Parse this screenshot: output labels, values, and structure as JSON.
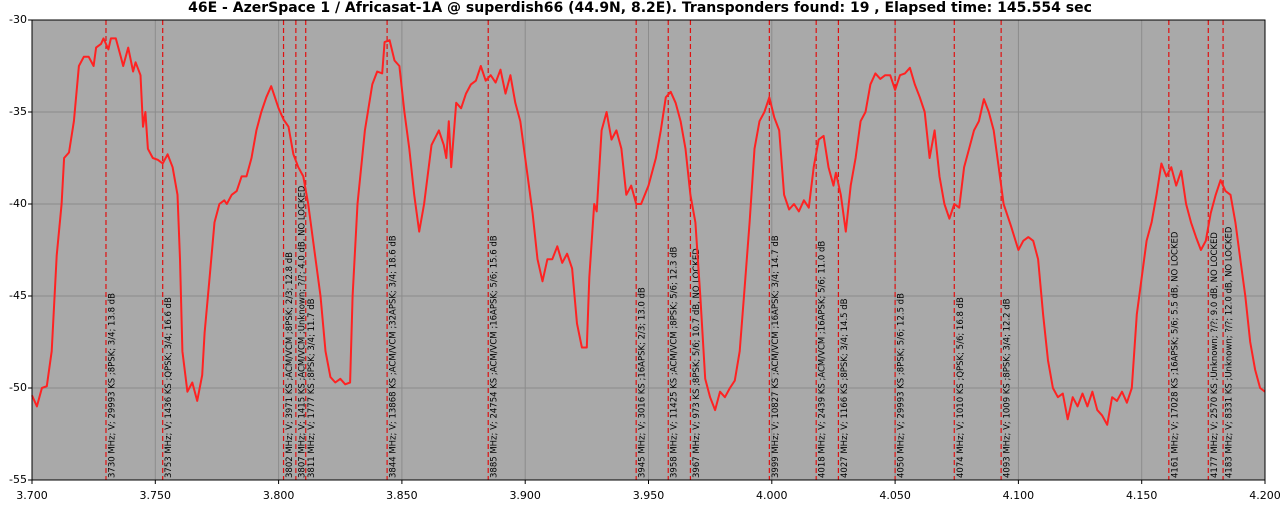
{
  "chart_data": {
    "type": "line",
    "title": "46E - AzerSpace 1 / Africasat-1A @ superdish66 (44.9N, 8.2E). Transponders found: 19 , Elapsed time: 145.554 sec",
    "color": "#ff2222",
    "marker_color": "#e01010",
    "grid": true,
    "xlim": [
      3.7,
      4.2
    ],
    "ylim": [
      -55,
      -30
    ],
    "xticks": [
      {
        "value": 3.7,
        "label": "3.700"
      },
      {
        "value": 3.75,
        "label": "3.750"
      },
      {
        "value": 3.8,
        "label": "3.800"
      },
      {
        "value": 3.85,
        "label": "3.850"
      },
      {
        "value": 3.9,
        "label": "3.900"
      },
      {
        "value": 3.95,
        "label": "3.950"
      },
      {
        "value": 4.0,
        "label": "4.000"
      },
      {
        "value": 4.05,
        "label": "4.050"
      },
      {
        "value": 4.1,
        "label": "4.100"
      },
      {
        "value": 4.15,
        "label": "4.150"
      },
      {
        "value": 4.2,
        "label": "4.200"
      }
    ],
    "yticks": [
      -30,
      -35,
      -40,
      -45,
      -50,
      -55
    ],
    "x": [
      3.7,
      3.702,
      3.704,
      3.706,
      3.708,
      3.71,
      3.712,
      3.713,
      3.715,
      3.717,
      3.719,
      3.721,
      3.723,
      3.725,
      3.726,
      3.728,
      3.729,
      3.731,
      3.732,
      3.734,
      3.736,
      3.737,
      3.739,
      3.741,
      3.742,
      3.744,
      3.745,
      3.746,
      3.747,
      3.749,
      3.751,
      3.753,
      3.755,
      3.757,
      3.759,
      3.76,
      3.761,
      3.763,
      3.765,
      3.767,
      3.769,
      3.77,
      3.772,
      3.774,
      3.776,
      3.778,
      3.779,
      3.781,
      3.783,
      3.785,
      3.787,
      3.789,
      3.791,
      3.793,
      3.795,
      3.797,
      3.8,
      3.802,
      3.804,
      3.806,
      3.808,
      3.81,
      3.812,
      3.814,
      3.817,
      3.819,
      3.821,
      3.823,
      3.825,
      3.827,
      3.829,
      3.83,
      3.832,
      3.835,
      3.838,
      3.84,
      3.842,
      3.843,
      3.845,
      3.847,
      3.849,
      3.851,
      3.853,
      3.855,
      3.857,
      3.859,
      3.862,
      3.865,
      3.867,
      3.868,
      3.869,
      3.87,
      3.872,
      3.874,
      3.876,
      3.878,
      3.88,
      3.882,
      3.884,
      3.886,
      3.888,
      3.89,
      3.892,
      3.894,
      3.896,
      3.898,
      3.9,
      3.903,
      3.905,
      3.907,
      3.909,
      3.911,
      3.913,
      3.915,
      3.917,
      3.919,
      3.921,
      3.923,
      3.925,
      3.926,
      3.928,
      3.929,
      3.931,
      3.933,
      3.935,
      3.937,
      3.939,
      3.941,
      3.943,
      3.945,
      3.947,
      3.95,
      3.953,
      3.955,
      3.957,
      3.959,
      3.961,
      3.963,
      3.965,
      3.967,
      3.969,
      3.971,
      3.973,
      3.975,
      3.977,
      3.979,
      3.981,
      3.983,
      3.985,
      3.987,
      3.989,
      3.991,
      3.993,
      3.995,
      3.997,
      3.999,
      4.001,
      4.003,
      4.005,
      4.007,
      4.009,
      4.011,
      4.013,
      4.015,
      4.017,
      4.019,
      4.021,
      4.023,
      4.025,
      4.026,
      4.028,
      4.03,
      4.032,
      4.034,
      4.036,
      4.038,
      4.04,
      4.042,
      4.044,
      4.046,
      4.048,
      4.05,
      4.052,
      4.054,
      4.056,
      4.058,
      4.06,
      4.062,
      4.064,
      4.066,
      4.068,
      4.07,
      4.072,
      4.074,
      4.076,
      4.078,
      4.08,
      4.082,
      4.084,
      4.086,
      4.088,
      4.09,
      4.092,
      4.094,
      4.097,
      4.1,
      4.102,
      4.104,
      4.106,
      4.108,
      4.11,
      4.112,
      4.114,
      4.116,
      4.118,
      4.12,
      4.122,
      4.124,
      4.126,
      4.128,
      4.13,
      4.132,
      4.134,
      4.136,
      4.138,
      4.14,
      4.142,
      4.144,
      4.146,
      4.148,
      4.15,
      4.152,
      4.154,
      4.156,
      4.158,
      4.16,
      4.162,
      4.164,
      4.166,
      4.168,
      4.17,
      4.172,
      4.174,
      4.176,
      4.178,
      4.18,
      4.182,
      4.184,
      4.186,
      4.188,
      4.19,
      4.192,
      4.194,
      4.196,
      4.198,
      4.2
    ],
    "values": [
      -50.4,
      -51.0,
      -50.0,
      -49.9,
      -48.0,
      -42.8,
      -40.0,
      -37.5,
      -37.2,
      -35.5,
      -32.5,
      -32.0,
      -32.0,
      -32.5,
      -31.5,
      -31.3,
      -31.0,
      -31.6,
      -31.0,
      -31.0,
      -32.0,
      -32.5,
      -31.5,
      -32.8,
      -32.3,
      -33.0,
      -35.8,
      -35.0,
      -37.0,
      -37.5,
      -37.6,
      -37.8,
      -37.3,
      -38.0,
      -39.5,
      -43.0,
      -48.0,
      -50.2,
      -49.7,
      -50.7,
      -49.3,
      -47.0,
      -44.0,
      -41.0,
      -40.0,
      -39.8,
      -40.0,
      -39.5,
      -39.3,
      -38.5,
      -38.5,
      -37.5,
      -36.0,
      -35.0,
      -34.2,
      -33.6,
      -34.8,
      -35.4,
      -35.8,
      -37.3,
      -38.0,
      -38.5,
      -40.0,
      -42.0,
      -45.0,
      -48.0,
      -49.4,
      -49.7,
      -49.5,
      -49.8,
      -49.7,
      -45.0,
      -40.0,
      -36.0,
      -33.5,
      -32.8,
      -32.9,
      -31.2,
      -31.1,
      -32.2,
      -32.5,
      -35.0,
      -37.0,
      -39.5,
      -41.5,
      -40.0,
      -36.8,
      -36.0,
      -36.8,
      -37.5,
      -35.5,
      -38.0,
      -34.5,
      -34.8,
      -34.0,
      -33.5,
      -33.3,
      -32.5,
      -33.3,
      -33.0,
      -33.4,
      -32.7,
      -34.0,
      -33.0,
      -34.5,
      -35.5,
      -37.5,
      -40.5,
      -43.0,
      -44.2,
      -43.0,
      -43.0,
      -42.3,
      -43.2,
      -42.7,
      -43.5,
      -46.5,
      -47.8,
      -47.8,
      -44.0,
      -40.0,
      -40.4,
      -36.0,
      -35.0,
      -36.5,
      -36.0,
      -37.0,
      -39.5,
      -39.0,
      -40.0,
      -40.0,
      -39.0,
      -37.5,
      -36.0,
      -34.2,
      -33.9,
      -34.5,
      -35.5,
      -37.0,
      -39.5,
      -41.0,
      -45.0,
      -49.5,
      -50.5,
      -51.2,
      -50.2,
      -50.5,
      -50.0,
      -49.6,
      -48.0,
      -44.5,
      -41.0,
      -37.0,
      -35.5,
      -35.0,
      -34.2,
      -35.3,
      -36.0,
      -39.5,
      -40.3,
      -40.0,
      -40.4,
      -39.8,
      -40.2,
      -38.0,
      -36.5,
      -36.3,
      -38.0,
      -39.0,
      -38.3,
      -39.5,
      -41.5,
      -39.0,
      -37.5,
      -35.5,
      -35.0,
      -33.5,
      -32.9,
      -33.2,
      -33.0,
      -33.0,
      -33.8,
      -33.0,
      -32.9,
      -32.6,
      -33.5,
      -34.2,
      -35.0,
      -37.5,
      -36.0,
      -38.5,
      -40.0,
      -40.8,
      -40.0,
      -40.2,
      -38.0,
      -37.0,
      -36.0,
      -35.5,
      -34.3,
      -35.0,
      -36.0,
      -38.0,
      -40.0,
      -41.2,
      -42.5,
      -42.0,
      -41.8,
      -42.0,
      -43.0,
      -46.0,
      -48.5,
      -50.0,
      -50.5,
      -50.3,
      -51.7,
      -50.5,
      -51.0,
      -50.3,
      -51.0,
      -50.2,
      -51.2,
      -51.5,
      -52.0,
      -50.5,
      -50.7,
      -50.2,
      -50.8,
      -50.0,
      -46.0,
      -44.0,
      -42.0,
      -41.0,
      -39.5,
      -37.8,
      -38.5,
      -38.0,
      -39.0,
      -38.2,
      -40.0,
      -41.0,
      -41.8,
      -42.5,
      -42.0,
      -40.5,
      -39.5,
      -38.7,
      -39.3,
      -39.5,
      -41.0,
      -43.0,
      -45.0,
      -47.5,
      -49.0,
      -50.0,
      -50.2
    ],
    "transponders": [
      {
        "freq": 3.73,
        "label": "3730 MHz; V; 29993 KS ;8PSK; 3/4; 13.8 dB"
      },
      {
        "freq": 3.753,
        "label": "3753 MHz; V; 1436 KS ;QPSK; 3/4; 16.6 dB"
      },
      {
        "freq": 3.802,
        "label": "3802 MHz; V; 3971 KS ;ACM/VCM ;8PSK; 2/3; 12.8 dB"
      },
      {
        "freq": 3.807,
        "label": "3807 MHz; V; 1415 KS ;ACM/VCM ;Unknown; ?/?; 4.0 dB, NO LOCKED"
      },
      {
        "freq": 3.811,
        "label": "3811 MHz; V; 1777 KS ;8PSK; 3/4; 11.7 dB"
      },
      {
        "freq": 3.844,
        "label": "3844 MHz; V; 13868 KS ;ACM/VCM ;32APSK; 3/4; 18.6 dB"
      },
      {
        "freq": 3.885,
        "label": "3885 MHz; V; 24754 KS ;ACM/VCM ;16APSK; 5/6; 15.6 dB"
      },
      {
        "freq": 3.945,
        "label": "3945 MHz; V; 3016 KS ;16APSK; 2/3; 13.0 dB"
      },
      {
        "freq": 3.958,
        "label": "3958 MHz; V; 11425 KS ;ACM/VCM ;8PSK; 5/6; 12.3 dB"
      },
      {
        "freq": 3.967,
        "label": "3967 MHz; V; 973 KS ;8PSK; 5/6; 10.7 dB, NO LOCKED"
      },
      {
        "freq": 3.999,
        "label": "3999 MHz; V; 10827 KS ;ACM/VCM ;16APSK; 3/4; 14.7 dB"
      },
      {
        "freq": 4.018,
        "label": "4018 MHz; V; 2439 KS ;ACM/VCM ;16APSK; 5/6; 11.0 dB"
      },
      {
        "freq": 4.027,
        "label": "4027 MHz; V; 1166 KS ;8PSK; 3/4; 14.5 dB"
      },
      {
        "freq": 4.05,
        "label": "4050 MHz; V; 29993 KS ;8PSK; 5/6; 12.5 dB"
      },
      {
        "freq": 4.074,
        "label": "4074 MHz; V; 1010 KS ;QPSK; 5/6; 16.8 dB"
      },
      {
        "freq": 4.093,
        "label": "4093 MHz; V; 1009 KS ;8PSK; 3/4; 12.2 dB"
      },
      {
        "freq": 4.161,
        "label": "4161 MHz; V; 17028 KS ;16APSK; 5/6; 5.5 dB, NO LOCKED"
      },
      {
        "freq": 4.177,
        "label": "4177 MHz; V; 2570 KS ;Unknown; ?/?; 9.0 dB, NO LOCKED"
      },
      {
        "freq": 4.183,
        "label": "4183 MHz; V; 8331 KS ;Unknown; ?/?; 12.0 dB, NO LOCKED"
      }
    ]
  }
}
